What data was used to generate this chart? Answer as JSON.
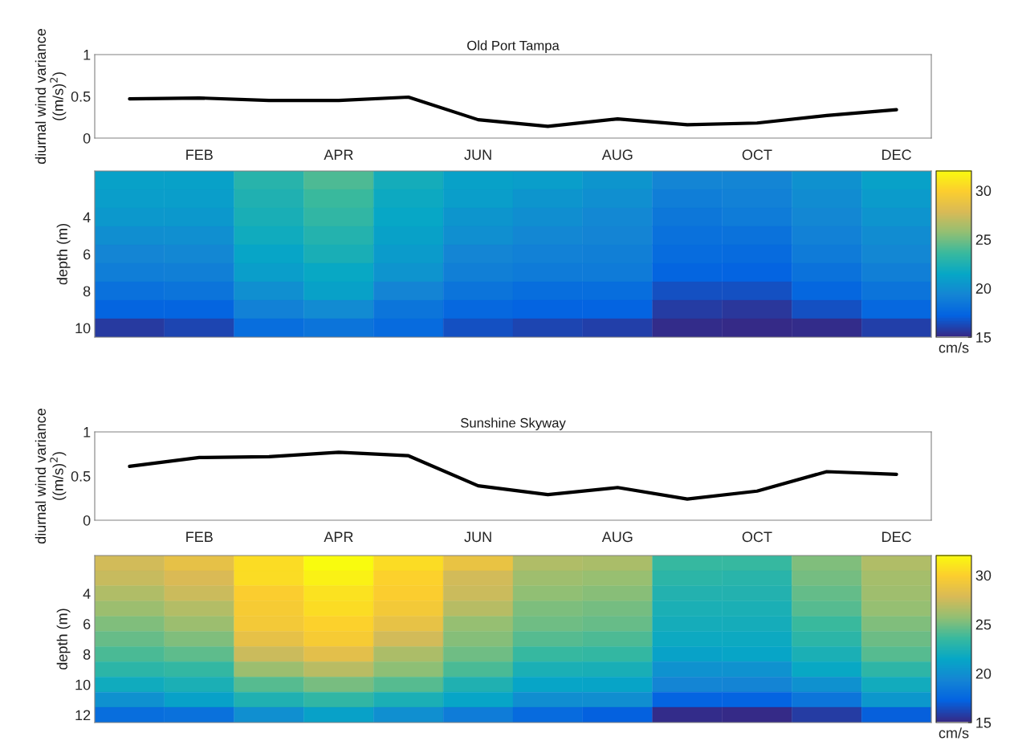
{
  "chart_data": [
    {
      "type": "line",
      "title": "Old Port Tampa",
      "ylabel": "diurnal wind variance\n((m/s)$^{2}$)",
      "categories": [
        null,
        "FEB",
        null,
        "APR",
        null,
        "JUN",
        null,
        "AUG",
        null,
        "OCT",
        null,
        "DEC"
      ],
      "ylim": [
        0,
        1
      ],
      "yticks": [
        0,
        0.5,
        1
      ],
      "series": [
        {
          "color": "#000000",
          "values": [
            0.47,
            0.48,
            0.45,
            0.45,
            0.49,
            0.22,
            0.14,
            0.23,
            0.16,
            0.18,
            0.27,
            0.34
          ]
        }
      ]
    },
    {
      "type": "heatmap",
      "ylabel": "depth (m)",
      "tick_labels": "y",
      "categories": [
        null,
        null,
        null,
        null,
        null,
        null,
        null,
        null,
        null,
        null,
        null,
        null
      ],
      "y_categories": [
        null,
        null,
        "4",
        null,
        "6",
        null,
        "8",
        null,
        "10"
      ],
      "clim": [
        15,
        32
      ],
      "cticks": [
        15,
        20,
        25,
        30
      ],
      "clabel": "cm/s",
      "cells": [
        [
          21.0,
          21.0,
          22.8,
          24.0,
          22.0,
          21.0,
          20.8,
          20.3,
          19.3,
          19.3,
          20.0,
          21.0
        ],
        [
          20.8,
          20.8,
          22.5,
          23.5,
          21.7,
          20.8,
          20.3,
          19.9,
          18.8,
          19.0,
          19.7,
          20.6
        ],
        [
          20.5,
          20.5,
          22.2,
          23.2,
          21.4,
          20.3,
          19.8,
          19.5,
          18.4,
          18.7,
          19.4,
          20.2
        ],
        [
          19.8,
          19.9,
          21.8,
          22.7,
          21.0,
          19.9,
          19.4,
          19.2,
          18.0,
          18.1,
          19.0,
          19.7
        ],
        [
          19.3,
          19.4,
          21.3,
          22.2,
          20.6,
          19.3,
          19.0,
          18.9,
          17.7,
          17.6,
          18.6,
          19.4
        ],
        [
          18.8,
          18.9,
          20.8,
          21.5,
          20.2,
          18.9,
          18.6,
          18.6,
          17.3,
          17.2,
          18.1,
          18.9
        ],
        [
          18.0,
          18.2,
          19.9,
          21.0,
          19.2,
          18.2,
          17.8,
          17.8,
          16.4,
          16.4,
          17.4,
          18.2
        ],
        [
          17.3,
          17.3,
          19.0,
          19.6,
          18.3,
          17.5,
          17.2,
          17.2,
          15.7,
          15.5,
          16.4,
          17.5
        ],
        [
          15.6,
          16.0,
          17.8,
          18.2,
          17.6,
          16.4,
          16.0,
          15.8,
          15.1,
          15.0,
          15.1,
          15.8
        ]
      ]
    },
    {
      "type": "line",
      "title": "Sunshine Skyway",
      "ylabel": "diurnal wind variance\n((m/s)$^{2}$)",
      "categories": [
        null,
        "FEB",
        null,
        "APR",
        null,
        "JUN",
        null,
        "AUG",
        null,
        "OCT",
        null,
        "DEC"
      ],
      "ylim": [
        0,
        1
      ],
      "yticks": [
        0,
        0.5,
        1
      ],
      "series": [
        {
          "color": "#000000",
          "values": [
            0.61,
            0.71,
            0.72,
            0.77,
            0.73,
            0.39,
            0.29,
            0.37,
            0.24,
            0.33,
            0.55,
            0.52
          ]
        }
      ]
    },
    {
      "type": "heatmap",
      "ylabel": "depth (m)",
      "tick_labels": "y",
      "categories": [
        null,
        null,
        null,
        null,
        null,
        null,
        null,
        null,
        null,
        null,
        null,
        null
      ],
      "y_categories": [
        null,
        null,
        "4",
        null,
        "6",
        null,
        "8",
        null,
        "10",
        null,
        "12"
      ],
      "clim": [
        15,
        32
      ],
      "cticks": [
        15,
        20,
        25,
        30
      ],
      "clabel": "cm/s",
      "cells": [
        [
          27.5,
          28.5,
          30.5,
          32.0,
          30.5,
          28.7,
          26.5,
          26.3,
          23.4,
          23.4,
          25.2,
          26.5
        ],
        [
          27.2,
          27.8,
          30.5,
          31.5,
          30.0,
          27.5,
          26.0,
          25.8,
          23.0,
          22.9,
          24.9,
          26.2
        ],
        [
          26.5,
          27.3,
          29.8,
          30.8,
          29.8,
          27.3,
          25.6,
          25.4,
          22.6,
          22.6,
          24.5,
          26.0
        ],
        [
          25.9,
          26.6,
          29.5,
          30.5,
          29.3,
          26.7,
          25.1,
          24.9,
          22.3,
          22.3,
          24.2,
          25.7
        ],
        [
          25.2,
          25.9,
          29.3,
          30.0,
          28.6,
          25.7,
          24.8,
          24.6,
          22.0,
          22.0,
          23.5,
          25.2
        ],
        [
          24.6,
          25.2,
          28.5,
          29.5,
          27.5,
          25.3,
          24.2,
          24.0,
          21.7,
          21.7,
          23.0,
          24.7
        ],
        [
          23.9,
          24.4,
          27.3,
          28.3,
          26.4,
          24.8,
          23.4,
          23.3,
          21.1,
          21.3,
          22.3,
          24.2
        ],
        [
          23.0,
          23.3,
          25.9,
          26.8,
          25.5,
          23.9,
          22.3,
          22.2,
          20.1,
          20.1,
          21.5,
          23.1
        ],
        [
          21.8,
          22.3,
          24.2,
          25.0,
          24.2,
          22.5,
          21.3,
          21.2,
          19.3,
          19.2,
          20.0,
          21.9
        ],
        [
          20.0,
          21.0,
          22.5,
          23.2,
          22.3,
          21.3,
          19.8,
          19.8,
          17.2,
          17.2,
          18.3,
          20.4
        ],
        [
          17.8,
          18.0,
          19.9,
          21.0,
          19.9,
          18.7,
          17.6,
          17.1,
          15.1,
          15.0,
          15.7,
          17.0
        ]
      ]
    }
  ]
}
